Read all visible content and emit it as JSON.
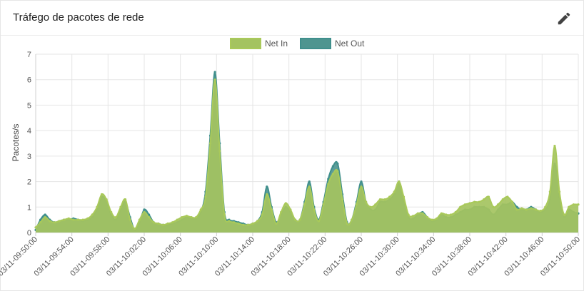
{
  "card": {
    "title": "Tráfego de pacotes de rede",
    "edit_icon": "pencil-icon"
  },
  "chart_data": {
    "type": "area",
    "title": "",
    "xlabel": "",
    "ylabel": "Pacotes/s",
    "ylim": [
      0,
      7
    ],
    "yticks": [
      0,
      1,
      2,
      3,
      4,
      5,
      6,
      7
    ],
    "xticks": [
      "03/11-09:50:00",
      "03/11-09:54:00",
      "03/11-09:58:00",
      "03/11-10:02:00",
      "03/11-10:06:00",
      "03/11-10:10:00",
      "03/11-10:14:00",
      "03/11-10:18:00",
      "03/11-10:22:00",
      "03/11-10:26:00",
      "03/11-10:30:00",
      "03/11-10:34:00",
      "03/11-10:38:00",
      "03/11-10:42:00",
      "03/11-10:46:00",
      "03/11-10:50:00"
    ],
    "grid": true,
    "legend_position": "top-center",
    "x_start": "03/11-09:50:00",
    "x_step_seconds": 20,
    "series": [
      {
        "name": "Net Out",
        "color": "#3f8f8c",
        "fill": "#4e9590",
        "values": [
          0.1,
          0.5,
          0.7,
          0.5,
          0.4,
          0.45,
          0.5,
          0.5,
          0.55,
          0.5,
          0.45,
          0.5,
          0.6,
          0.9,
          1.4,
          1.2,
          0.7,
          0.5,
          0.9,
          1.2,
          0.6,
          0.1,
          0.4,
          0.9,
          0.7,
          0.4,
          0.35,
          0.3,
          0.3,
          0.35,
          0.4,
          0.5,
          0.6,
          0.55,
          0.55,
          0.8,
          1.6,
          3.8,
          6.3,
          3.5,
          0.8,
          0.5,
          0.45,
          0.4,
          0.35,
          0.3,
          0.35,
          0.45,
          0.8,
          1.8,
          1.0,
          0.4,
          0.7,
          1.0,
          0.8,
          0.5,
          0.5,
          1.2,
          2.0,
          1.0,
          0.5,
          1.2,
          2.1,
          2.6,
          2.7,
          1.5,
          0.4,
          0.5,
          1.2,
          2.0,
          1.2,
          0.9,
          0.9,
          1.2,
          1.2,
          1.3,
          1.5,
          2.0,
          1.3,
          0.6,
          0.55,
          0.7,
          0.8,
          0.6,
          0.45,
          0.5,
          0.7,
          0.6,
          0.6,
          0.7,
          0.8,
          0.9,
          0.9,
          1.0,
          1.0,
          1.0,
          0.9,
          0.7,
          0.9,
          1.1,
          1.1,
          1.2,
          1.0,
          0.9,
          0.9,
          1.0,
          0.9,
          0.8,
          0.9,
          1.3,
          2.7,
          1.4,
          0.6,
          0.9,
          0.8,
          0.75
        ]
      },
      {
        "name": "Net In",
        "color": "#a9c95a",
        "fill": "#a4c360",
        "values": [
          0.2,
          0.4,
          0.6,
          0.45,
          0.4,
          0.45,
          0.5,
          0.55,
          0.5,
          0.5,
          0.5,
          0.55,
          0.7,
          1.0,
          1.5,
          1.3,
          0.8,
          0.6,
          1.0,
          1.3,
          0.5,
          0.15,
          0.5,
          0.8,
          0.6,
          0.4,
          0.35,
          0.3,
          0.35,
          0.4,
          0.5,
          0.6,
          0.65,
          0.6,
          0.6,
          0.9,
          1.4,
          3.5,
          6.0,
          3.2,
          0.7,
          0.45,
          0.4,
          0.35,
          0.3,
          0.3,
          0.35,
          0.45,
          0.7,
          1.5,
          0.9,
          0.35,
          0.8,
          1.15,
          0.9,
          0.5,
          0.5,
          1.1,
          1.8,
          0.9,
          0.45,
          1.1,
          1.9,
          2.3,
          2.4,
          1.3,
          0.35,
          0.5,
          1.1,
          1.8,
          1.2,
          1.0,
          1.1,
          1.3,
          1.3,
          1.4,
          1.6,
          2.0,
          1.4,
          0.7,
          0.65,
          0.75,
          0.75,
          0.6,
          0.5,
          0.55,
          0.75,
          0.7,
          0.7,
          0.8,
          1.0,
          1.1,
          1.15,
          1.2,
          1.2,
          1.3,
          1.4,
          1.0,
          1.1,
          1.3,
          1.4,
          1.2,
          0.9,
          0.95,
          0.9,
          0.95,
          0.9,
          0.85,
          1.0,
          1.6,
          3.4,
          1.6,
          0.7,
          1.0,
          1.1,
          1.1
        ]
      }
    ]
  }
}
